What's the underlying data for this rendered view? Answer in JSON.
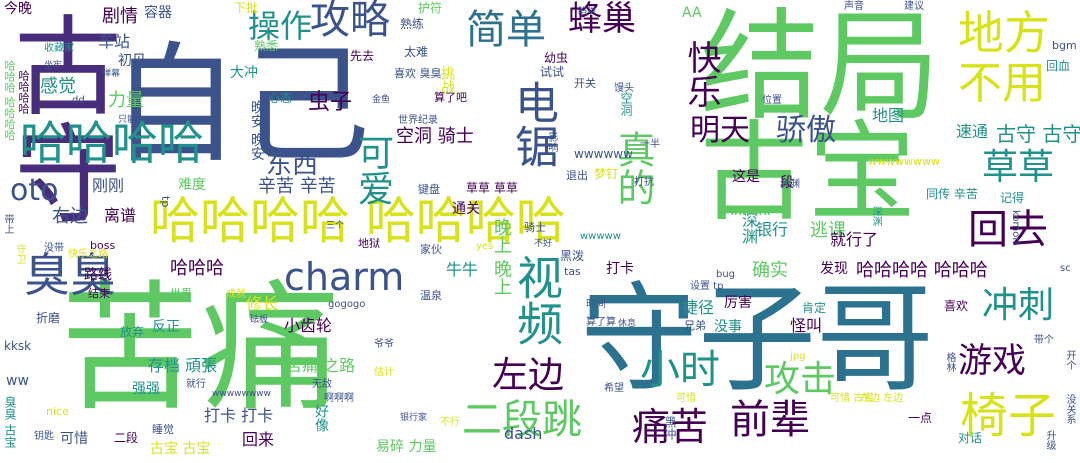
{
  "palette": {
    "purple": "#440154",
    "indigo": "#3b528b",
    "teal": "#21918c",
    "green": "#5ec962",
    "yellow": "#d8e219",
    "lime": "#addc30",
    "blue": "#2c728e",
    "deep": "#472d7b"
  },
  "words": [
    {
      "text": "古守",
      "color": "#472d7b"
    },
    {
      "text": "自己",
      "color": "#3b528b"
    },
    {
      "text": "结局",
      "color": "#5ec962"
    },
    {
      "text": "古宝",
      "color": "#5ec962"
    },
    {
      "text": "守子哥",
      "color": "#2c728e"
    },
    {
      "text": "苦痛",
      "color": "#5ec962"
    },
    {
      "text": "哈哈哈哈 哈哈哈哈",
      "color": "#d8e219"
    },
    {
      "text": "哈哈哈哈",
      "color": "#21918c"
    },
    {
      "text": "攻略",
      "color": "#3b528b"
    },
    {
      "text": "操作",
      "color": "#21918c"
    },
    {
      "text": "简单",
      "color": "#2c728e"
    },
    {
      "text": "蜂巢",
      "color": "#440154"
    },
    {
      "text": "地方",
      "color": "#d8e219"
    },
    {
      "text": "不用",
      "color": "#d8e219"
    },
    {
      "text": "草草",
      "color": "#21918c"
    },
    {
      "text": "回去",
      "color": "#440154"
    },
    {
      "text": "冲刺",
      "color": "#21918c"
    },
    {
      "text": "游戏",
      "color": "#440154"
    },
    {
      "text": "椅子",
      "color": "#d8e219"
    },
    {
      "text": "前辈",
      "color": "#440154"
    },
    {
      "text": "痛苦",
      "color": "#440154"
    },
    {
      "text": "二段跳",
      "color": "#5ec962"
    },
    {
      "text": "小时",
      "color": "#21918c"
    },
    {
      "text": "攻击",
      "color": "#5ec962"
    },
    {
      "text": "左边",
      "color": "#440154"
    },
    {
      "text": "charm",
      "color": "#3b528b"
    },
    {
      "text": "臭臭",
      "color": "#3b528b"
    },
    {
      "text": "oto",
      "color": "#3b528b"
    },
    {
      "text": "东西",
      "color": "#3b528b"
    },
    {
      "text": "明天",
      "color": "#440154"
    },
    {
      "text": "骄傲",
      "color": "#3b528b"
    },
    {
      "text": "真的",
      "color": "#5ec962"
    },
    {
      "text": "视频",
      "color": "#21918c"
    },
    {
      "text": "可爱",
      "color": "#21918c"
    },
    {
      "text": "电锯",
      "color": "#3b528b"
    },
    {
      "text": "快乐",
      "color": "#440154"
    },
    {
      "text": "力量",
      "color": "#5ec962"
    },
    {
      "text": "感觉",
      "color": "#21918c"
    },
    {
      "text": "剧情",
      "color": "#440154"
    },
    {
      "text": "容器",
      "color": "#3b528b"
    },
    {
      "text": "今晚",
      "color": "#440154"
    },
    {
      "text": "车站",
      "color": "#3b528b"
    },
    {
      "text": "初见",
      "color": "#3b528b"
    },
    {
      "text": "虫子",
      "color": "#440154"
    },
    {
      "text": "空洞 骑士",
      "color": "#440154"
    },
    {
      "text": "古守 古守",
      "color": "#21918c"
    },
    {
      "text": "速通",
      "color": "#21918c"
    },
    {
      "text": "地图",
      "color": "#21918c"
    },
    {
      "text": "银行",
      "color": "#21918c"
    },
    {
      "text": "确实",
      "color": "#5ec962"
    },
    {
      "text": "逃课",
      "color": "#5ec962"
    },
    {
      "text": "哈哈哈哈 哈哈哈",
      "color": "#440154"
    },
    {
      "text": "哈哈哈",
      "color": "#440154"
    },
    {
      "text": "牛牛",
      "color": "#21918c"
    },
    {
      "text": "打卡",
      "color": "#440154"
    },
    {
      "text": "捷径",
      "color": "#21918c"
    },
    {
      "text": "厉害",
      "color": "#440154"
    },
    {
      "text": "怪叫",
      "color": "#440154"
    },
    {
      "text": "没事",
      "color": "#21918c"
    },
    {
      "text": "辛苦 辛苦",
      "color": "#3b528b"
    },
    {
      "text": "刚刚",
      "color": "#3b528b"
    },
    {
      "text": "右边",
      "color": "#3b528b"
    },
    {
      "text": "离谱",
      "color": "#440154"
    },
    {
      "text": "路线",
      "color": "#440154"
    },
    {
      "text": "修长",
      "color": "#d8e219"
    },
    {
      "text": "小齿轮",
      "color": "#440154"
    },
    {
      "text": "存档 頑張",
      "color": "#21918c"
    },
    {
      "text": "苦痛 之路",
      "color": "#5ec962"
    },
    {
      "text": "强强",
      "color": "#21918c"
    },
    {
      "text": "打卡 打卡",
      "color": "#3b528b"
    },
    {
      "text": "回来",
      "color": "#440154"
    },
    {
      "text": "可惜",
      "color": "#3b528b"
    },
    {
      "text": "古宝 古宝",
      "color": "#d8e219"
    },
    {
      "text": "dash",
      "color": "#3b528b"
    },
    {
      "text": "易碎 力量",
      "color": "#5ec962"
    },
    {
      "text": "对话",
      "color": "#21918c"
    },
    {
      "text": "就行了",
      "color": "#440154"
    },
    {
      "text": "发现",
      "color": "#440154"
    },
    {
      "text": "草草 草草",
      "color": "#440154"
    },
    {
      "text": "通关",
      "color": "#440154"
    },
    {
      "text": "晚安 晚安",
      "color": "#3b528b"
    },
    {
      "text": "难度",
      "color": "#5ec962"
    },
    {
      "text": "wwwwww",
      "color": "#3b528b"
    },
    {
      "text": "AA",
      "color": "#5ec962"
    },
    {
      "text": "熟练",
      "color": "#3b528b"
    },
    {
      "text": "护符",
      "color": "#5ec962"
    },
    {
      "text": "下批",
      "color": "#d8e219"
    },
    {
      "text": "大冲",
      "color": "#21918c"
    },
    {
      "text": "心态",
      "color": "#21918c"
    },
    {
      "text": "熟悉",
      "color": "#5ec962"
    },
    {
      "text": "先去",
      "color": "#440154"
    },
    {
      "text": "太难",
      "color": "#3b528b"
    },
    {
      "text": "试试",
      "color": "#3b528b"
    },
    {
      "text": "幼虫",
      "color": "#440154"
    },
    {
      "text": "喜欢 臭臭",
      "color": "#3b528b"
    },
    {
      "text": "挑战",
      "color": "#d8e219"
    },
    {
      "text": "算了吧",
      "color": "#440154"
    },
    {
      "text": "开关",
      "color": "#3b528b"
    },
    {
      "text": "空洞",
      "color": "#21918c"
    },
    {
      "text": "同传 辛苦",
      "color": "#21918c"
    },
    {
      "text": "记得",
      "color": "#21918c"
    },
    {
      "text": "肯定",
      "color": "#21918c"
    },
    {
      "text": "喜欢",
      "color": "#440154"
    },
    {
      "text": "回血",
      "color": "#21918c"
    },
    {
      "text": "bgm",
      "color": "#3b528b"
    },
    {
      "text": "建议",
      "color": "#3b528b"
    },
    {
      "text": "声音",
      "color": "#3b528b"
    },
    {
      "text": "收藏家",
      "color": "#21918c"
    },
    {
      "text": "ww",
      "color": "#3b528b"
    },
    {
      "text": "kksk",
      "color": "#3b528b"
    },
    {
      "text": "折磨",
      "color": "#3b528b"
    },
    {
      "text": "结束",
      "color": "#440154"
    },
    {
      "text": "世界",
      "color": "#5ec962"
    },
    {
      "text": "放弃",
      "color": "#21918c"
    },
    {
      "text": "反正",
      "color": "#21918c"
    },
    {
      "text": "boss",
      "color": "#440154"
    },
    {
      "text": "nice",
      "color": "#d8e219"
    },
    {
      "text": "睡觉",
      "color": "#3b528b"
    },
    {
      "text": "二段",
      "color": "#440154"
    },
    {
      "text": "钥匙",
      "color": "#3b528b"
    },
    {
      "text": "臭臭 古宝",
      "color": "#21918c"
    },
    {
      "text": "好像",
      "color": "#21918c"
    },
    {
      "text": "家伙",
      "color": "#3b528b"
    },
    {
      "text": "地狱",
      "color": "#440154"
    },
    {
      "text": "温泉",
      "color": "#3b528b"
    },
    {
      "text": "时间",
      "color": "#3b528b"
    },
    {
      "text": "算了算",
      "color": "#3b528b"
    },
    {
      "text": "兄弟",
      "color": "#3b528b"
    },
    {
      "text": "设置 tp",
      "color": "#3b528b"
    },
    {
      "text": "黑泼",
      "color": "#3b528b"
    },
    {
      "text": "tas",
      "color": "#3b528b"
    },
    {
      "text": "bug",
      "color": "#3b528b"
    },
    {
      "text": "一点",
      "color": "#440154"
    },
    {
      "text": "段",
      "color": "#440154"
    },
    {
      "text": "这是",
      "color": "#440154"
    },
    {
      "text": "骑士",
      "color": "#3b528b"
    },
    {
      "text": "退出",
      "color": "#3b528b"
    },
    {
      "text": "梦钉",
      "color": "#d8e219"
    },
    {
      "text": "打抗",
      "color": "#3b528b"
    },
    {
      "text": "深渊",
      "color": "#3b528b"
    },
    {
      "text": "深渊",
      "color": "#21918c"
    },
    {
      "text": "晚上 晚上",
      "color": "#5ec962"
    },
    {
      "text": "世界纪录",
      "color": "#3b528b"
    },
    {
      "text": "位置",
      "color": "#3b528b"
    },
    {
      "text": "升级",
      "color": "#3b528b"
    },
    {
      "text": "没关系",
      "color": "#3b528b"
    },
    {
      "text": "开个",
      "color": "#3b528b"
    },
    {
      "text": "带个",
      "color": "#3b528b"
    },
    {
      "text": "komori",
      "color": "#3b528b"
    },
    {
      "text": "sc",
      "color": "#3b528b"
    },
    {
      "text": "左边 左边",
      "color": "#d8e219"
    },
    {
      "text": "可惜 古宝",
      "color": "#d8e219"
    },
    {
      "text": "不行",
      "color": "#d8e219"
    },
    {
      "text": "估计",
      "color": "#d8e219"
    },
    {
      "text": "希望",
      "color": "#3b528b"
    },
    {
      "text": "银行家",
      "color": "#3b528b"
    },
    {
      "text": "爷爷",
      "color": "#3b528b"
    },
    {
      "text": "无敌",
      "color": "#3b528b"
    },
    {
      "text": "啊啊啊",
      "color": "#3b528b"
    },
    {
      "text": "wwwwwwww",
      "color": "#3b528b"
    },
    {
      "text": "就行",
      "color": "#3b528b"
    },
    {
      "text": "gogogo",
      "color": "#3b528b"
    },
    {
      "text": "成就",
      "color": "#d8e219"
    },
    {
      "text": "砝板",
      "color": "#3b528b"
    },
    {
      "text": "快乐之路",
      "color": "#d8e219"
    },
    {
      "text": "没带",
      "color": "#3b528b"
    },
    {
      "text": "守卫",
      "color": "#d8e219"
    },
    {
      "text": "带上",
      "color": "#3b528b"
    },
    {
      "text": "yes",
      "color": "#d8e219"
    },
    {
      "text": "jpg",
      "color": "#d8e219"
    },
    {
      "text": "一半",
      "color": "#3b528b"
    },
    {
      "text": "键盘",
      "color": "#3b528b"
    },
    {
      "text": "馒头",
      "color": "#3b528b"
    },
    {
      "text": "金鱼",
      "color": "#3b528b"
    },
    {
      "text": "坐牢",
      "color": "#3b528b"
    },
    {
      "text": "弹幕",
      "color": "#3b528b"
    },
    {
      "text": "只能",
      "color": "#3b528b"
    },
    {
      "text": "dd",
      "color": "#3b528b"
    },
    {
      "text": "哈哈哈 哈哈哈哈",
      "color": "#5ec962"
    },
    {
      "text": "哈哈哈哈",
      "color": "#440154"
    },
    {
      "text": "tp",
      "color": "#3b528b"
    },
    {
      "text": "影响",
      "color": "#3b528b"
    },
    {
      "text": "陷阱",
      "color": "#3b528b"
    },
    {
      "text": "wwwww",
      "color": "#5ec962"
    },
    {
      "text": "wwwwwwww",
      "color": "#d8e219"
    },
    {
      "text": "深渊",
      "color": "#21918c"
    },
    {
      "text": "wwwww",
      "color": "#21918c"
    },
    {
      "text": "黑冲",
      "color": "#3b528b"
    },
    {
      "text": "格林",
      "color": "#3b528b"
    },
    {
      "text": "三个",
      "color": "#3b528b"
    },
    {
      "text": "不好",
      "color": "#3b528b"
    },
    {
      "text": "休息",
      "color": "#3b528b"
    },
    {
      "text": "可惜",
      "color": "#d8e219"
    },
    {
      "text": "结局",
      "color": "#5ec962"
    }
  ]
}
